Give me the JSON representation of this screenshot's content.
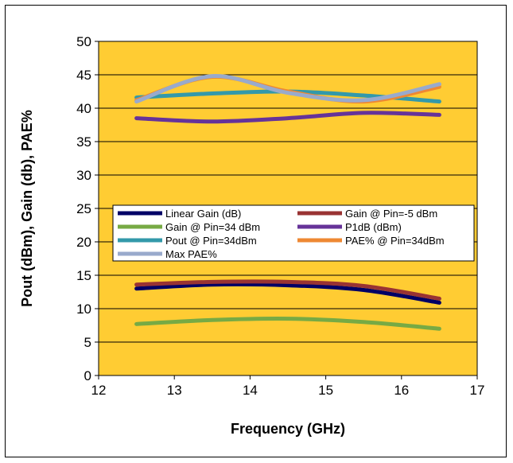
{
  "chart_data": {
    "type": "line",
    "title": "",
    "xlabel": "Frequency (GHz)",
    "ylabel": "Pout (dBm), Gain (db), PAE%",
    "xlim": [
      12,
      17
    ],
    "ylim": [
      0,
      50
    ],
    "x_ticks": [
      "12",
      "13",
      "14",
      "15",
      "16",
      "17"
    ],
    "y_ticks": [
      "0",
      "5",
      "10",
      "15",
      "20",
      "25",
      "30",
      "35",
      "40",
      "45",
      "50"
    ],
    "grid": "horizontal",
    "legend_placement": "center",
    "plot_background": "#ffcc33",
    "series": [
      {
        "name": "Linear Gain (dB)",
        "color": "#000066",
        "x": [
          12.5,
          13.5,
          14.5,
          15.5,
          16.5
        ],
        "y": [
          13.0,
          13.6,
          13.5,
          12.8,
          10.9
        ]
      },
      {
        "name": "Gain @ Pin=-5 dBm",
        "color": "#993333",
        "x": [
          12.5,
          13.5,
          14.5,
          15.5,
          16.5
        ],
        "y": [
          13.6,
          14.0,
          14.0,
          13.4,
          11.5
        ]
      },
      {
        "name": "Gain @ Pin=34 dBm",
        "color": "#77aa44",
        "x": [
          12.5,
          13.5,
          14.5,
          15.5,
          16.5
        ],
        "y": [
          7.7,
          8.3,
          8.5,
          8.0,
          7.0
        ]
      },
      {
        "name": "P1dB (dBm)",
        "color": "#663399",
        "x": [
          12.5,
          13.5,
          14.5,
          15.5,
          16.5
        ],
        "y": [
          38.5,
          38.0,
          38.5,
          39.3,
          39.0
        ]
      },
      {
        "name": "Pout @ Pin=34dBm",
        "color": "#3399aa",
        "x": [
          12.5,
          13.5,
          14.5,
          15.5,
          16.5
        ],
        "y": [
          41.6,
          42.2,
          42.5,
          41.9,
          41.0
        ]
      },
      {
        "name": "PAE% @ Pin=34dBm",
        "color": "#ee8833",
        "x": [
          12.5,
          13.5,
          14.5,
          15.5,
          16.5
        ],
        "y": [
          41.2,
          44.7,
          42.5,
          41.0,
          43.2
        ]
      },
      {
        "name": "Max PAE%",
        "color": "#99aacc",
        "x": [
          12.5,
          13.5,
          14.5,
          15.5,
          16.5
        ],
        "y": [
          41.0,
          44.8,
          42.3,
          41.2,
          43.6
        ]
      }
    ]
  }
}
